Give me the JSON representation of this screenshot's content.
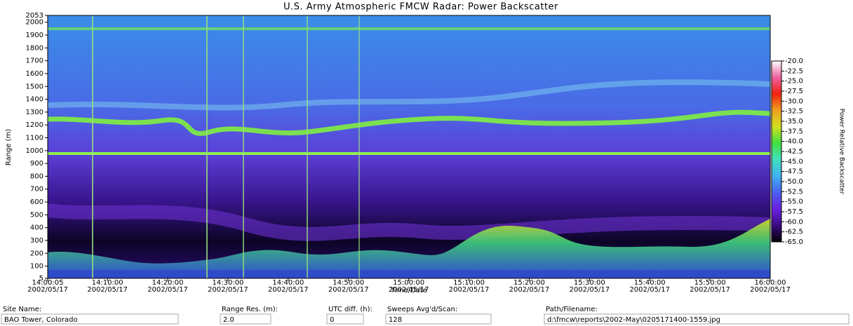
{
  "chart_data": {
    "type": "heatmap",
    "title": "U.S. Army Atmospheric FMCW Radar: Power Backscatter",
    "xlabel": "Time/Date",
    "ylabel": "Range (m)",
    "xlim": [
      "14:00:05",
      "16:00:00"
    ],
    "xticks": [
      "14:00:05",
      "14:10:00",
      "14:20:00",
      "14:30:00",
      "14:40:00",
      "14:50:00",
      "15:00:00",
      "15:10:00",
      "15:20:00",
      "15:30:00",
      "15:40:00",
      "15:50:00",
      "16:00:00"
    ],
    "xtick_dates": [
      "2002/05/17",
      "2002/05/17",
      "2002/05/17",
      "2002/05/17",
      "2002/05/17",
      "2002/05/17",
      "2002/05/17",
      "2002/05/17",
      "2002/05/17",
      "2002/05/17",
      "2002/05/17",
      "2002/05/17",
      "2002/05/17"
    ],
    "ylim": [
      5,
      2053
    ],
    "yticks": [
      5,
      100,
      200,
      300,
      400,
      500,
      600,
      700,
      800,
      900,
      1000,
      1100,
      1200,
      1300,
      1400,
      1500,
      1600,
      1700,
      1800,
      1900,
      2000,
      2053
    ],
    "colorbar_label": "Power Relative Backscatter",
    "zlim": [
      -65,
      -20
    ],
    "zticks": [
      {
        "value": -20,
        "label": "-20.0"
      },
      {
        "value": -22.5,
        "label": "-22.5"
      },
      {
        "value": -25,
        "label": "-25.0"
      },
      {
        "value": -27.5,
        "label": "-27.5"
      },
      {
        "value": -30,
        "label": "-30.0"
      },
      {
        "value": -32.5,
        "label": "-32.5"
      },
      {
        "value": -35,
        "label": "-35.0"
      },
      {
        "value": -37.5,
        "label": "-37.5"
      },
      {
        "value": -40,
        "label": "-40.0"
      },
      {
        "value": -42.5,
        "label": "-42.5"
      },
      {
        "value": -45,
        "label": "-45.0"
      },
      {
        "value": -47.5,
        "label": "-47.5"
      },
      {
        "value": -50,
        "label": "-50.0"
      },
      {
        "value": -52.5,
        "label": "-52.5"
      },
      {
        "value": -55,
        "label": "-55.0"
      },
      {
        "value": -57.5,
        "label": "-57.5"
      },
      {
        "value": -60,
        "label": "-60.0"
      },
      {
        "value": -62.5,
        "label": "-62.5"
      },
      {
        "value": -65,
        "label": "-65.0"
      }
    ],
    "colorscale": [
      "#000000",
      "#3a0a80",
      "#6a20e0",
      "#4a60f0",
      "#40b0f0",
      "#40e0c0",
      "#40e040",
      "#d0e020",
      "#f0a020",
      "#f02010",
      "#f060a0",
      "#ffffff"
    ]
  },
  "fields": [
    {
      "label": "Site Name:",
      "value": "BAO Tower, Colorado"
    },
    {
      "label": "Range Res. (m):",
      "value": "2.0"
    },
    {
      "label": "UTC diff. (h):",
      "value": "0"
    },
    {
      "label": "Sweeps Avg'd/Scan:",
      "value": "128"
    },
    {
      "label": "Path/Filename:",
      "value": "d:\\fmcw\\reports\\2002-May\\0205171400-1559.jpg"
    }
  ]
}
